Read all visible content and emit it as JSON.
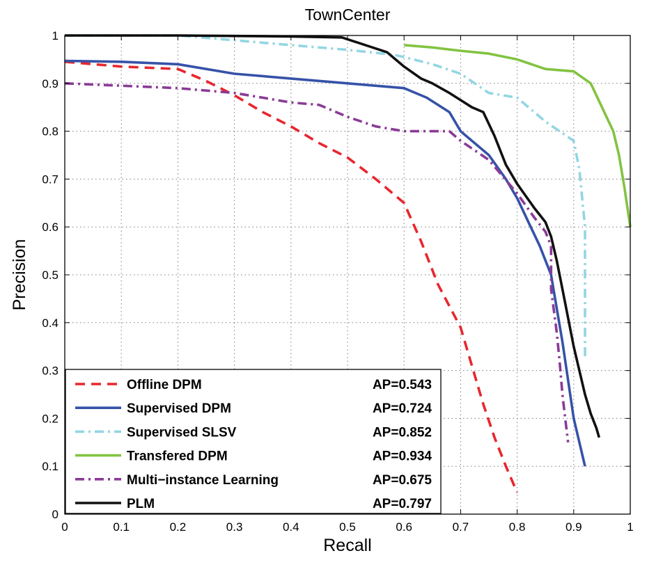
{
  "chart_data": {
    "type": "line",
    "title": "TownCenter",
    "xlabel": "Recall",
    "ylabel": "Precision",
    "xlim": [
      0,
      1
    ],
    "ylim": [
      0,
      1
    ],
    "grid": true,
    "legend_position": "bottom-left",
    "x_ticks": [
      "0",
      "0.1",
      "0.2",
      "0.3",
      "0.4",
      "0.5",
      "0.6",
      "0.7",
      "0.8",
      "0.9",
      "1"
    ],
    "y_ticks": [
      "0",
      "0.1",
      "0.2",
      "0.3",
      "0.4",
      "0.5",
      "0.6",
      "0.7",
      "0.8",
      "0.9",
      "1"
    ],
    "series": [
      {
        "name": "Offline DPM",
        "ap": "AP=0.543",
        "color": "#e8262e",
        "style": "dashed",
        "x": [
          0,
          0.1,
          0.2,
          0.22,
          0.25,
          0.3,
          0.35,
          0.4,
          0.45,
          0.5,
          0.55,
          0.6,
          0.63,
          0.66,
          0.7,
          0.72,
          0.74,
          0.76,
          0.78,
          0.8
        ],
        "y": [
          0.945,
          0.935,
          0.93,
          0.92,
          0.905,
          0.875,
          0.84,
          0.81,
          0.775,
          0.745,
          0.7,
          0.65,
          0.57,
          0.48,
          0.39,
          0.31,
          0.23,
          0.16,
          0.1,
          0.045
        ]
      },
      {
        "name": "Supervised DPM",
        "ap": "AP=0.724",
        "color": "#3652a8",
        "style": "solid",
        "x": [
          0,
          0.1,
          0.2,
          0.3,
          0.4,
          0.5,
          0.6,
          0.64,
          0.68,
          0.7,
          0.72,
          0.75,
          0.78,
          0.8,
          0.82,
          0.84,
          0.86,
          0.87,
          0.88,
          0.89,
          0.9,
          0.92
        ],
        "y": [
          0.947,
          0.945,
          0.94,
          0.92,
          0.91,
          0.9,
          0.89,
          0.87,
          0.84,
          0.8,
          0.78,
          0.75,
          0.7,
          0.66,
          0.61,
          0.56,
          0.5,
          0.43,
          0.36,
          0.28,
          0.2,
          0.1
        ]
      },
      {
        "name": "Supervised SLSV",
        "ap": "AP=0.852",
        "color": "#92d6e3",
        "style": "dashdot",
        "x": [
          0,
          0.1,
          0.2,
          0.3,
          0.4,
          0.5,
          0.58,
          0.6,
          0.65,
          0.7,
          0.75,
          0.8,
          0.85,
          0.9,
          0.91,
          0.92,
          0.92
        ],
        "y": [
          1.0,
          1.0,
          1.0,
          0.99,
          0.98,
          0.97,
          0.96,
          0.955,
          0.94,
          0.92,
          0.88,
          0.87,
          0.82,
          0.78,
          0.72,
          0.6,
          0.33
        ]
      },
      {
        "name": "Transfered DPM",
        "ap": "AP=0.934",
        "color": "#82c341",
        "style": "solid",
        "x": [
          0.6,
          0.65,
          0.7,
          0.75,
          0.8,
          0.85,
          0.9,
          0.93,
          0.95,
          0.97,
          0.98,
          0.99,
          1.0
        ],
        "y": [
          0.98,
          0.975,
          0.968,
          0.962,
          0.95,
          0.93,
          0.925,
          0.9,
          0.85,
          0.8,
          0.75,
          0.68,
          0.6
        ]
      },
      {
        "name": "Multi-instance Learning",
        "ap": "AP=0.675",
        "color": "#8a3b96",
        "style": "dashdot",
        "x": [
          0,
          0.1,
          0.2,
          0.3,
          0.35,
          0.4,
          0.45,
          0.5,
          0.55,
          0.6,
          0.65,
          0.68,
          0.7,
          0.75,
          0.8,
          0.83,
          0.85,
          0.86,
          0.86,
          0.87,
          0.875,
          0.88,
          0.885,
          0.89
        ],
        "y": [
          0.9,
          0.895,
          0.89,
          0.88,
          0.87,
          0.86,
          0.855,
          0.83,
          0.81,
          0.8,
          0.8,
          0.8,
          0.78,
          0.74,
          0.67,
          0.62,
          0.59,
          0.56,
          0.47,
          0.38,
          0.32,
          0.25,
          0.2,
          0.15
        ]
      },
      {
        "name": "PLM",
        "ap": "AP=0.797",
        "color": "#111111",
        "style": "solid",
        "x": [
          0,
          0.1,
          0.2,
          0.3,
          0.4,
          0.49,
          0.57,
          0.6,
          0.63,
          0.65,
          0.68,
          0.7,
          0.72,
          0.74,
          0.76,
          0.78,
          0.8,
          0.83,
          0.85,
          0.86,
          0.87,
          0.88,
          0.89,
          0.9,
          0.91,
          0.92,
          0.93,
          0.94,
          0.945
        ],
        "y": [
          1.0,
          1.0,
          1.0,
          0.999,
          0.998,
          0.996,
          0.965,
          0.935,
          0.91,
          0.9,
          0.88,
          0.865,
          0.85,
          0.84,
          0.79,
          0.73,
          0.69,
          0.64,
          0.61,
          0.58,
          0.53,
          0.47,
          0.41,
          0.35,
          0.3,
          0.25,
          0.21,
          0.18,
          0.16
        ]
      }
    ]
  }
}
